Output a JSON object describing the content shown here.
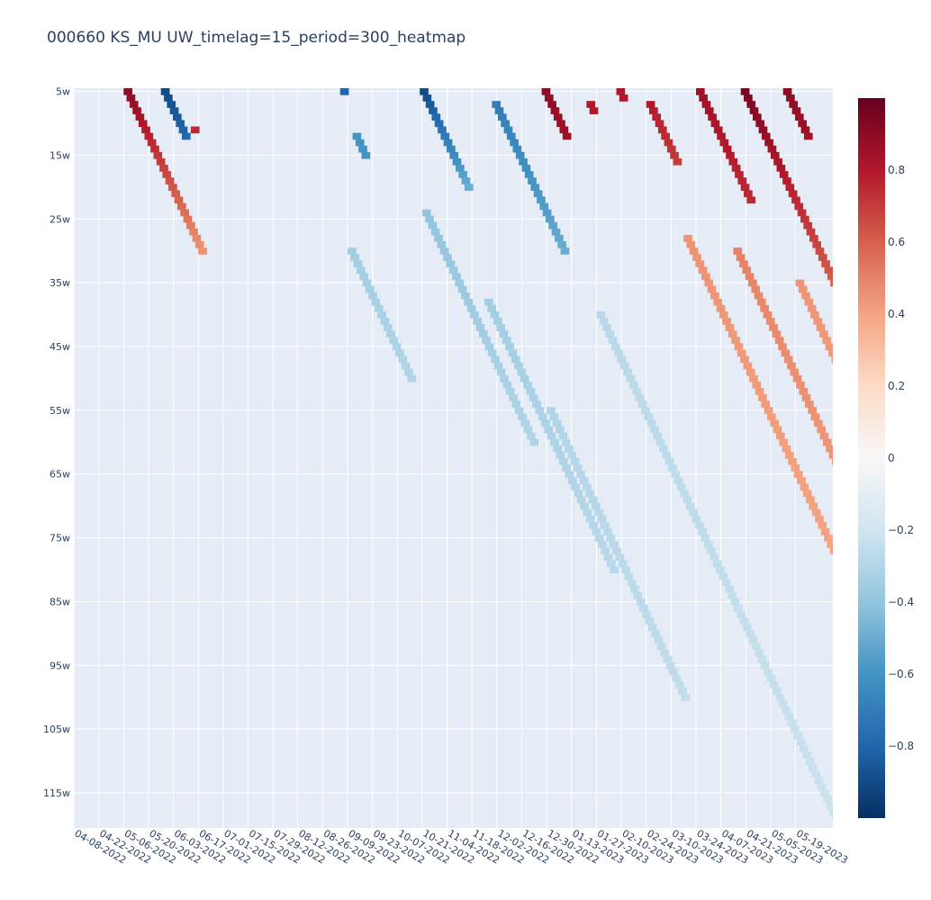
{
  "chart_data": {
    "type": "heatmap",
    "title": "000660 KS_MU UW_timelag=15_period=300_heatmap",
    "x_tick_labels": [
      "04-08-2022",
      "04-22-2022",
      "05-06-2022",
      "05-20-2022",
      "06-03-2022",
      "06-17-2022",
      "07-01-2022",
      "07-15-2022",
      "07-29-2022",
      "08-12-2022",
      "08-26-2022",
      "09-09-2022",
      "09-23-2022",
      "10-07-2022",
      "10-21-2022",
      "11-04-2022",
      "11-18-2022",
      "12-02-2022",
      "12-16-2022",
      "12-30-2022",
      "01-13-2023",
      "01-27-2023",
      "02-10-2023",
      "02-24-2023",
      "03-10-2023",
      "03-24-2023",
      "04-07-2023",
      "04-21-2023",
      "05-05-2023",
      "05-19-2023"
    ],
    "y_tick_labels": [
      "5w",
      "15w",
      "25w",
      "35w",
      "45w",
      "55w",
      "65w",
      "75w",
      "85w",
      "95w",
      "105w",
      "115w"
    ],
    "y_range_weeks": [
      4.5,
      120.5
    ],
    "x_range_ticks": [
      0,
      30.5
    ],
    "colorscale": "RdBu_r",
    "colorbar_range": [
      -1,
      1
    ],
    "colorbar_tick_values": [
      0.8,
      0.6,
      0.4,
      0.2,
      0,
      -0.2,
      -0.4,
      -0.6,
      -0.8
    ],
    "colorbar_tick_labels": [
      "0.8",
      "0.6",
      "0.4",
      "0.2",
      "0",
      "−0.2",
      "−0.4",
      "−0.6",
      "−0.8"
    ],
    "bands": [
      {
        "x": 2.0,
        "y0": 5,
        "y1": 30,
        "v0": 0.9,
        "v1": 0.45
      },
      {
        "x": 3.5,
        "y0": 5,
        "y1": 12,
        "v0": -0.9,
        "v1": -0.8
      },
      {
        "x": 4.7,
        "y0": 11,
        "y1": 11,
        "v0": 0.75,
        "v1": 0.75
      },
      {
        "x": 10.7,
        "y0": 5,
        "y1": 5,
        "v0": -0.8,
        "v1": -0.8
      },
      {
        "x": 11.2,
        "y0": 12,
        "y1": 15,
        "v0": -0.6,
        "v1": -0.6
      },
      {
        "x": 13.9,
        "y0": 5,
        "y1": 20,
        "v0": -0.9,
        "v1": -0.5
      },
      {
        "x": 16.8,
        "y0": 7,
        "y1": 30,
        "v0": -0.7,
        "v1": -0.5
      },
      {
        "x": 18.8,
        "y0": 5,
        "y1": 12,
        "v0": 0.9,
        "v1": 0.85
      },
      {
        "x": 20.6,
        "y0": 7,
        "y1": 8,
        "v0": 0.8,
        "v1": 0.8
      },
      {
        "x": 21.8,
        "y0": 5,
        "y1": 6,
        "v0": 0.8,
        "v1": 0.8
      },
      {
        "x": 23.0,
        "y0": 7,
        "y1": 16,
        "v0": 0.8,
        "v1": 0.7
      },
      {
        "x": 25.0,
        "y0": 5,
        "y1": 22,
        "v0": 0.85,
        "v1": 0.75
      },
      {
        "x": 26.8,
        "y0": 5,
        "y1": 40,
        "v0": 0.95,
        "v1": 0.55
      },
      {
        "x": 28.5,
        "y0": 5,
        "y1": 12,
        "v0": 0.9,
        "v1": 0.85
      },
      {
        "x": 11.0,
        "y0": 30,
        "y1": 50,
        "v0": -0.35,
        "v1": -0.3
      },
      {
        "x": 14.0,
        "y0": 24,
        "y1": 60,
        "v0": -0.4,
        "v1": -0.3
      },
      {
        "x": 16.5,
        "y0": 38,
        "y1": 80,
        "v0": -0.35,
        "v1": -0.28
      },
      {
        "x": 19.0,
        "y0": 55,
        "y1": 100,
        "v0": -0.3,
        "v1": -0.25
      },
      {
        "x": 21.0,
        "y0": 40,
        "y1": 120,
        "v0": -0.28,
        "v1": -0.22
      },
      {
        "x": 24.5,
        "y0": 28,
        "y1": 80,
        "v0": 0.45,
        "v1": 0.4
      },
      {
        "x": 26.5,
        "y0": 30,
        "y1": 110,
        "v0": 0.5,
        "v1": 0.35
      },
      {
        "x": 29.0,
        "y0": 35,
        "y1": 120,
        "v0": 0.45,
        "v1": 0.3
      }
    ]
  }
}
